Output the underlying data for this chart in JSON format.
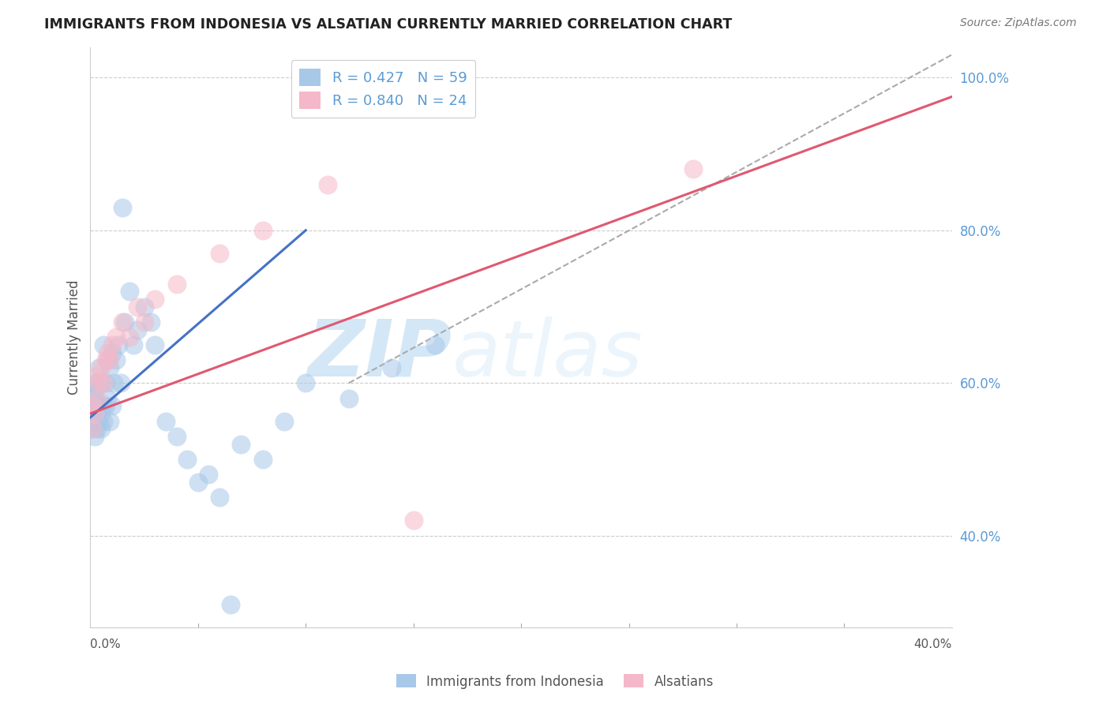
{
  "title": "IMMIGRANTS FROM INDONESIA VS ALSATIAN CURRENTLY MARRIED CORRELATION CHART",
  "source": "Source: ZipAtlas.com",
  "ylabel": "Currently Married",
  "xlim": [
    0.0,
    0.4
  ],
  "ylim": [
    0.28,
    1.04
  ],
  "yticks": [
    0.4,
    0.6,
    0.8,
    1.0
  ],
  "ytick_labels": [
    "40.0%",
    "60.0%",
    "80.0%",
    "100.0%"
  ],
  "blue_R": 0.427,
  "blue_N": 59,
  "pink_R": 0.84,
  "pink_N": 24,
  "blue_fill_color": "#a8c8e8",
  "pink_fill_color": "#f5b8c8",
  "blue_line_color": "#4472c4",
  "pink_line_color": "#e05870",
  "legend_blue_label": "Immigrants from Indonesia",
  "legend_pink_label": "Alsatians",
  "watermark_zip": "ZIP",
  "watermark_atlas": "atlas",
  "blue_scatter_x": [
    0.001,
    0.001,
    0.001,
    0.001,
    0.001,
    0.002,
    0.002,
    0.002,
    0.002,
    0.002,
    0.002,
    0.003,
    0.003,
    0.003,
    0.003,
    0.003,
    0.004,
    0.004,
    0.004,
    0.005,
    0.005,
    0.005,
    0.006,
    0.006,
    0.006,
    0.007,
    0.007,
    0.008,
    0.008,
    0.009,
    0.009,
    0.01,
    0.01,
    0.011,
    0.012,
    0.013,
    0.014,
    0.015,
    0.016,
    0.018,
    0.02,
    0.022,
    0.025,
    0.028,
    0.03,
    0.035,
    0.04,
    0.045,
    0.05,
    0.055,
    0.06,
    0.07,
    0.08,
    0.09,
    0.1,
    0.12,
    0.14,
    0.16,
    0.065
  ],
  "blue_scatter_y": [
    0.54,
    0.56,
    0.57,
    0.55,
    0.58,
    0.53,
    0.56,
    0.57,
    0.58,
    0.59,
    0.6,
    0.54,
    0.55,
    0.56,
    0.57,
    0.6,
    0.55,
    0.57,
    0.62,
    0.54,
    0.56,
    0.6,
    0.55,
    0.57,
    0.65,
    0.57,
    0.6,
    0.58,
    0.63,
    0.55,
    0.62,
    0.57,
    0.64,
    0.6,
    0.63,
    0.65,
    0.6,
    0.83,
    0.68,
    0.72,
    0.65,
    0.67,
    0.7,
    0.68,
    0.65,
    0.55,
    0.53,
    0.5,
    0.47,
    0.48,
    0.45,
    0.52,
    0.5,
    0.55,
    0.6,
    0.58,
    0.62,
    0.65,
    0.31
  ],
  "pink_scatter_x": [
    0.001,
    0.001,
    0.002,
    0.003,
    0.003,
    0.004,
    0.005,
    0.006,
    0.007,
    0.008,
    0.009,
    0.01,
    0.012,
    0.015,
    0.018,
    0.022,
    0.025,
    0.03,
    0.04,
    0.06,
    0.08,
    0.11,
    0.15,
    0.28
  ],
  "pink_scatter_y": [
    0.54,
    0.57,
    0.56,
    0.58,
    0.61,
    0.6,
    0.62,
    0.6,
    0.63,
    0.64,
    0.63,
    0.65,
    0.66,
    0.68,
    0.66,
    0.7,
    0.68,
    0.71,
    0.73,
    0.77,
    0.8,
    0.86,
    0.42,
    0.88
  ],
  "blue_line_x0": 0.0,
  "blue_line_x1": 0.1,
  "blue_line_y0": 0.555,
  "blue_line_y1": 0.8,
  "pink_line_x0": 0.0,
  "pink_line_x1": 0.4,
  "pink_line_y0": 0.56,
  "pink_line_y1": 0.975,
  "diag_line_x0": 0.12,
  "diag_line_x1": 0.4,
  "diag_line_y0": 0.6,
  "diag_line_y1": 1.03
}
